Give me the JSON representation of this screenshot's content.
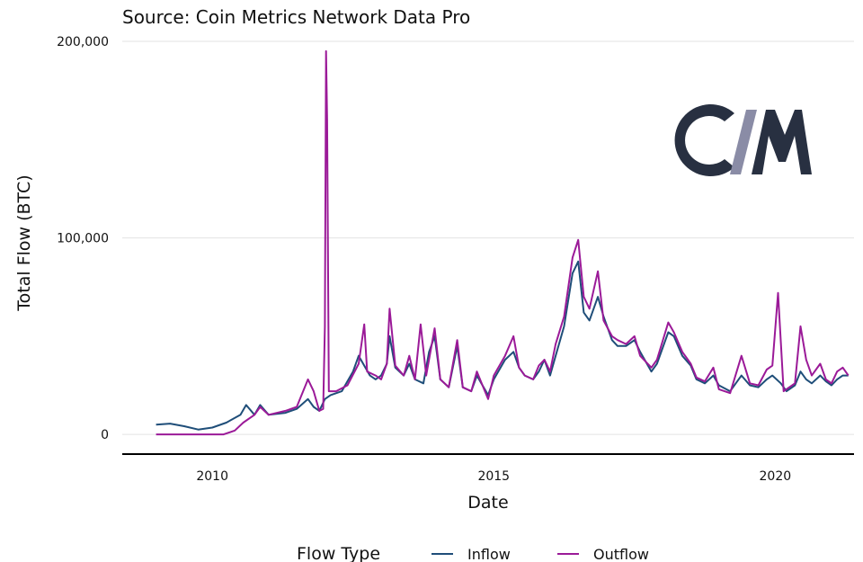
{
  "chart_data": {
    "type": "line",
    "title": "",
    "subtitle": "Source: Coin Metrics Network Data Pro",
    "xlabel": "Date",
    "ylabel": "Total Flow (BTC)",
    "x_tick_labels": [
      "2010",
      "2015",
      "2020"
    ],
    "y_tick_labels": [
      "0",
      "100,000",
      "200,000"
    ],
    "x_ticks": [
      2010,
      2015,
      2020
    ],
    "y_ticks": [
      0,
      100000,
      200000
    ],
    "xlim": [
      2008.4,
      2021.4
    ],
    "ylim": [
      -10000,
      200000
    ],
    "grid": "horizontal",
    "legend": {
      "title": "Flow Type",
      "position": "bottom"
    },
    "series": [
      {
        "name": "Inflow",
        "color": "#1f4e79",
        "points": [
          [
            2009.0,
            5000
          ],
          [
            2009.25,
            5500
          ],
          [
            2009.5,
            4200
          ],
          [
            2009.75,
            2500
          ],
          [
            2010.0,
            3500
          ],
          [
            2010.25,
            6000
          ],
          [
            2010.5,
            10000
          ],
          [
            2010.6,
            15000
          ],
          [
            2010.75,
            10000
          ],
          [
            2010.85,
            15000
          ],
          [
            2011.0,
            10000
          ],
          [
            2011.3,
            11000
          ],
          [
            2011.5,
            13000
          ],
          [
            2011.7,
            18000
          ],
          [
            2011.8,
            14000
          ],
          [
            2011.9,
            12000
          ],
          [
            2011.95,
            15000
          ],
          [
            2012.0,
            18000
          ],
          [
            2012.1,
            20000
          ],
          [
            2012.3,
            22000
          ],
          [
            2012.5,
            32000
          ],
          [
            2012.6,
            40000
          ],
          [
            2012.7,
            35000
          ],
          [
            2012.8,
            30000
          ],
          [
            2012.9,
            28000
          ],
          [
            2013.0,
            30000
          ],
          [
            2013.1,
            36000
          ],
          [
            2013.15,
            50000
          ],
          [
            2013.25,
            34000
          ],
          [
            2013.4,
            30000
          ],
          [
            2013.5,
            36000
          ],
          [
            2013.6,
            28000
          ],
          [
            2013.75,
            26000
          ],
          [
            2013.85,
            42000
          ],
          [
            2013.95,
            50000
          ],
          [
            2014.05,
            28000
          ],
          [
            2014.2,
            24000
          ],
          [
            2014.35,
            45000
          ],
          [
            2014.45,
            24000
          ],
          [
            2014.6,
            22000
          ],
          [
            2014.7,
            30000
          ],
          [
            2014.8,
            25000
          ],
          [
            2014.9,
            20000
          ],
          [
            2015.0,
            28000
          ],
          [
            2015.2,
            38000
          ],
          [
            2015.35,
            42000
          ],
          [
            2015.45,
            34000
          ],
          [
            2015.55,
            30000
          ],
          [
            2015.7,
            28000
          ],
          [
            2015.8,
            32000
          ],
          [
            2015.9,
            38000
          ],
          [
            2016.0,
            30000
          ],
          [
            2016.1,
            40000
          ],
          [
            2016.25,
            55000
          ],
          [
            2016.4,
            82000
          ],
          [
            2016.5,
            88000
          ],
          [
            2016.6,
            62000
          ],
          [
            2016.7,
            58000
          ],
          [
            2016.85,
            70000
          ],
          [
            2016.95,
            60000
          ],
          [
            2017.1,
            48000
          ],
          [
            2017.2,
            45000
          ],
          [
            2017.35,
            45000
          ],
          [
            2017.5,
            48000
          ],
          [
            2017.6,
            42000
          ],
          [
            2017.8,
            32000
          ],
          [
            2017.9,
            36000
          ],
          [
            2018.1,
            52000
          ],
          [
            2018.2,
            50000
          ],
          [
            2018.35,
            40000
          ],
          [
            2018.5,
            35000
          ],
          [
            2018.6,
            28000
          ],
          [
            2018.75,
            26000
          ],
          [
            2018.9,
            30000
          ],
          [
            2019.0,
            25000
          ],
          [
            2019.2,
            22000
          ],
          [
            2019.4,
            30000
          ],
          [
            2019.55,
            25000
          ],
          [
            2019.7,
            24000
          ],
          [
            2019.85,
            28000
          ],
          [
            2019.95,
            30000
          ],
          [
            2020.1,
            26000
          ],
          [
            2020.2,
            22000
          ],
          [
            2020.35,
            25000
          ],
          [
            2020.45,
            32000
          ],
          [
            2020.55,
            28000
          ],
          [
            2020.65,
            26000
          ],
          [
            2020.8,
            30000
          ],
          [
            2020.9,
            27000
          ],
          [
            2021.0,
            25000
          ],
          [
            2021.1,
            28000
          ],
          [
            2021.2,
            30000
          ],
          [
            2021.3,
            30000
          ]
        ]
      },
      {
        "name": "Outflow",
        "color": "#9b1a98",
        "points": [
          [
            2009.0,
            0
          ],
          [
            2009.5,
            0
          ],
          [
            2009.75,
            0
          ],
          [
            2009.9,
            0
          ],
          [
            2010.0,
            0
          ],
          [
            2010.2,
            0
          ],
          [
            2010.4,
            2000
          ],
          [
            2010.55,
            6000
          ],
          [
            2010.75,
            10000
          ],
          [
            2010.85,
            14000
          ],
          [
            2011.0,
            10000
          ],
          [
            2011.3,
            12000
          ],
          [
            2011.5,
            14000
          ],
          [
            2011.7,
            28000
          ],
          [
            2011.8,
            22000
          ],
          [
            2011.9,
            12000
          ],
          [
            2011.97,
            13000
          ],
          [
            2012.0,
            55000
          ],
          [
            2012.02,
            195000
          ],
          [
            2012.04,
            160000
          ],
          [
            2012.07,
            22000
          ],
          [
            2012.2,
            22000
          ],
          [
            2012.4,
            25000
          ],
          [
            2012.6,
            36000
          ],
          [
            2012.7,
            56000
          ],
          [
            2012.75,
            32000
          ],
          [
            2012.9,
            30000
          ],
          [
            2013.0,
            28000
          ],
          [
            2013.1,
            36000
          ],
          [
            2013.15,
            64000
          ],
          [
            2013.25,
            35000
          ],
          [
            2013.4,
            30000
          ],
          [
            2013.5,
            40000
          ],
          [
            2013.6,
            28000
          ],
          [
            2013.7,
            56000
          ],
          [
            2013.8,
            30000
          ],
          [
            2013.95,
            54000
          ],
          [
            2014.05,
            28000
          ],
          [
            2014.2,
            24000
          ],
          [
            2014.35,
            48000
          ],
          [
            2014.45,
            24000
          ],
          [
            2014.6,
            22000
          ],
          [
            2014.7,
            32000
          ],
          [
            2014.8,
            25000
          ],
          [
            2014.9,
            18000
          ],
          [
            2015.0,
            30000
          ],
          [
            2015.2,
            40000
          ],
          [
            2015.35,
            50000
          ],
          [
            2015.45,
            34000
          ],
          [
            2015.55,
            30000
          ],
          [
            2015.7,
            28000
          ],
          [
            2015.8,
            35000
          ],
          [
            2015.9,
            38000
          ],
          [
            2016.0,
            32000
          ],
          [
            2016.1,
            46000
          ],
          [
            2016.25,
            60000
          ],
          [
            2016.4,
            90000
          ],
          [
            2016.5,
            99000
          ],
          [
            2016.6,
            70000
          ],
          [
            2016.7,
            64000
          ],
          [
            2016.85,
            83000
          ],
          [
            2016.95,
            58000
          ],
          [
            2017.1,
            50000
          ],
          [
            2017.2,
            48000
          ],
          [
            2017.35,
            46000
          ],
          [
            2017.5,
            50000
          ],
          [
            2017.6,
            40000
          ],
          [
            2017.8,
            34000
          ],
          [
            2017.9,
            38000
          ],
          [
            2018.1,
            57000
          ],
          [
            2018.2,
            52000
          ],
          [
            2018.35,
            42000
          ],
          [
            2018.5,
            36000
          ],
          [
            2018.6,
            29000
          ],
          [
            2018.75,
            27000
          ],
          [
            2018.9,
            34000
          ],
          [
            2019.0,
            23000
          ],
          [
            2019.2,
            21000
          ],
          [
            2019.4,
            40000
          ],
          [
            2019.55,
            26000
          ],
          [
            2019.7,
            25000
          ],
          [
            2019.85,
            33000
          ],
          [
            2019.95,
            35000
          ],
          [
            2020.05,
            72000
          ],
          [
            2020.15,
            22000
          ],
          [
            2020.35,
            26000
          ],
          [
            2020.45,
            55000
          ],
          [
            2020.55,
            38000
          ],
          [
            2020.65,
            30000
          ],
          [
            2020.8,
            36000
          ],
          [
            2020.9,
            28000
          ],
          [
            2021.0,
            26000
          ],
          [
            2021.1,
            32000
          ],
          [
            2021.2,
            34000
          ],
          [
            2021.3,
            30000
          ]
        ]
      }
    ]
  },
  "logo": {
    "text": "CM",
    "color_dark": "#283041",
    "color_stripe": "#8a8ca6"
  }
}
